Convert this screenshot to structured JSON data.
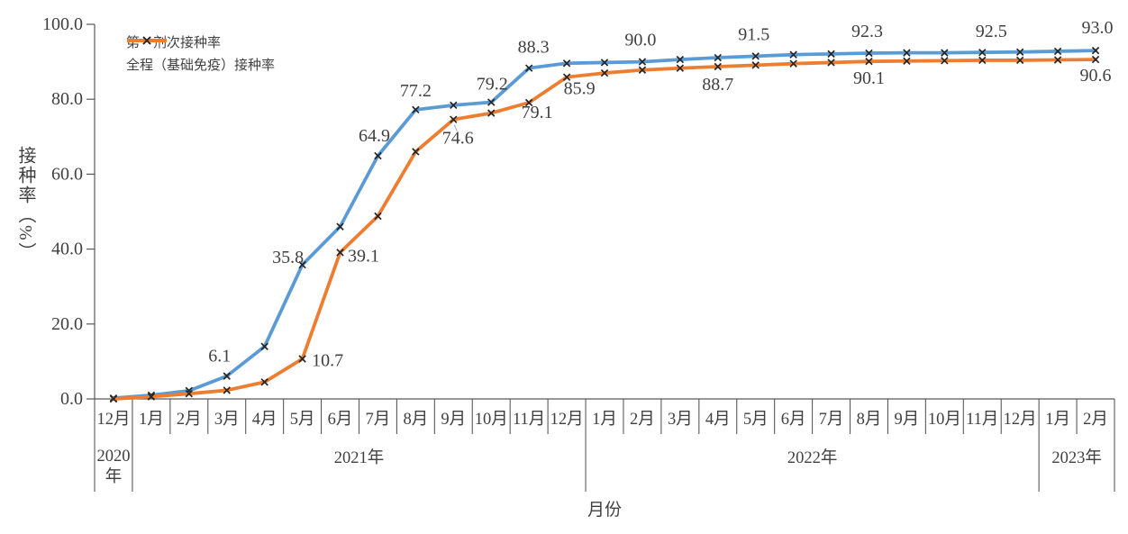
{
  "chart_data": {
    "type": "line",
    "x_axis_title": "月份",
    "y_axis_title": "接种率（%）",
    "ylim": [
      0,
      100
    ],
    "y_ticks": [
      0,
      20,
      40,
      60,
      80,
      100
    ],
    "y_tick_labels": [
      "0.0",
      "20.0",
      "40.0",
      "60.0",
      "80.0",
      "100.0"
    ],
    "grid": false,
    "legend_position": "top-left",
    "categories": [
      "12月",
      "1月",
      "2月",
      "3月",
      "4月",
      "5月",
      "6月",
      "7月",
      "8月",
      "9月",
      "10月",
      "11月",
      "12月",
      "1月",
      "2月",
      "3月",
      "4月",
      "5月",
      "6月",
      "7月",
      "8月",
      "9月",
      "10月",
      "11月",
      "12月",
      "1月",
      "2月"
    ],
    "year_groups": [
      {
        "label": "2020年",
        "start": 0,
        "span": 1,
        "wrap": true
      },
      {
        "label": "2021年",
        "start": 1,
        "span": 12,
        "wrap": false
      },
      {
        "label": "2022年",
        "start": 13,
        "span": 12,
        "wrap": false
      },
      {
        "label": "2023年",
        "start": 25,
        "span": 2,
        "wrap": false
      }
    ],
    "marker": {
      "shape": "x",
      "color": "#262626"
    },
    "axis_color": "#595959",
    "label_color": "#404040",
    "series": [
      {
        "name": "第一剂次接种率",
        "color": "#5B9BD5",
        "values": [
          0.2,
          1.0,
          2.2,
          6.1,
          14.0,
          35.8,
          46.0,
          64.9,
          77.2,
          78.4,
          79.2,
          88.3,
          89.6,
          89.8,
          90.0,
          90.6,
          91.1,
          91.5,
          91.9,
          92.1,
          92.3,
          92.4,
          92.4,
          92.5,
          92.6,
          92.8,
          93.0
        ],
        "labels": [
          {
            "i": 3,
            "text": "6.1",
            "dx": -8,
            "dy": -22
          },
          {
            "i": 5,
            "text": "35.8",
            "dx": -16,
            "dy": -8
          },
          {
            "i": 7,
            "text": "64.9",
            "dx": -4,
            "dy": -22
          },
          {
            "i": 8,
            "text": "77.2",
            "dx": 0,
            "dy": -21
          },
          {
            "i": 10,
            "text": "79.2",
            "dx": 1,
            "dy": -20
          },
          {
            "i": 11,
            "text": "88.3",
            "dx": 5,
            "dy": -23
          },
          {
            "i": 14,
            "text": "90.0",
            "dx": -2,
            "dy": -24
          },
          {
            "i": 17,
            "text": "91.5",
            "dx": -2,
            "dy": -24
          },
          {
            "i": 20,
            "text": "92.3",
            "dx": -2,
            "dy": -24
          },
          {
            "i": 23,
            "text": "92.5",
            "dx": 10,
            "dy": -23
          },
          {
            "i": 26,
            "text": "93.0",
            "dx": 2,
            "dy": -25
          }
        ]
      },
      {
        "name": "全程（基础免疫）接种率",
        "color": "#ED7D31",
        "values": [
          0.0,
          0.6,
          1.4,
          2.3,
          4.5,
          10.7,
          39.1,
          48.8,
          66.0,
          74.6,
          76.3,
          79.1,
          85.9,
          87.0,
          87.8,
          88.3,
          88.7,
          89.1,
          89.5,
          89.8,
          90.1,
          90.2,
          90.3,
          90.4,
          90.4,
          90.5,
          90.6
        ],
        "labels": [
          {
            "i": 5,
            "text": "10.7",
            "dx": 28,
            "dy": 2
          },
          {
            "i": 6,
            "text": "39.1",
            "dx": 26,
            "dy": 4
          },
          {
            "i": 9,
            "text": "74.6",
            "dx": 5,
            "dy": 21,
            "leader": true
          },
          {
            "i": 11,
            "text": "79.1",
            "dx": 9,
            "dy": 11
          },
          {
            "i": 12,
            "text": "85.9",
            "dx": 14,
            "dy": 13
          },
          {
            "i": 16,
            "text": "88.7",
            "dx": 0,
            "dy": 20
          },
          {
            "i": 20,
            "text": "90.1",
            "dx": 0,
            "dy": 19
          },
          {
            "i": 26,
            "text": "90.6",
            "dx": 0,
            "dy": 18
          }
        ]
      }
    ]
  }
}
